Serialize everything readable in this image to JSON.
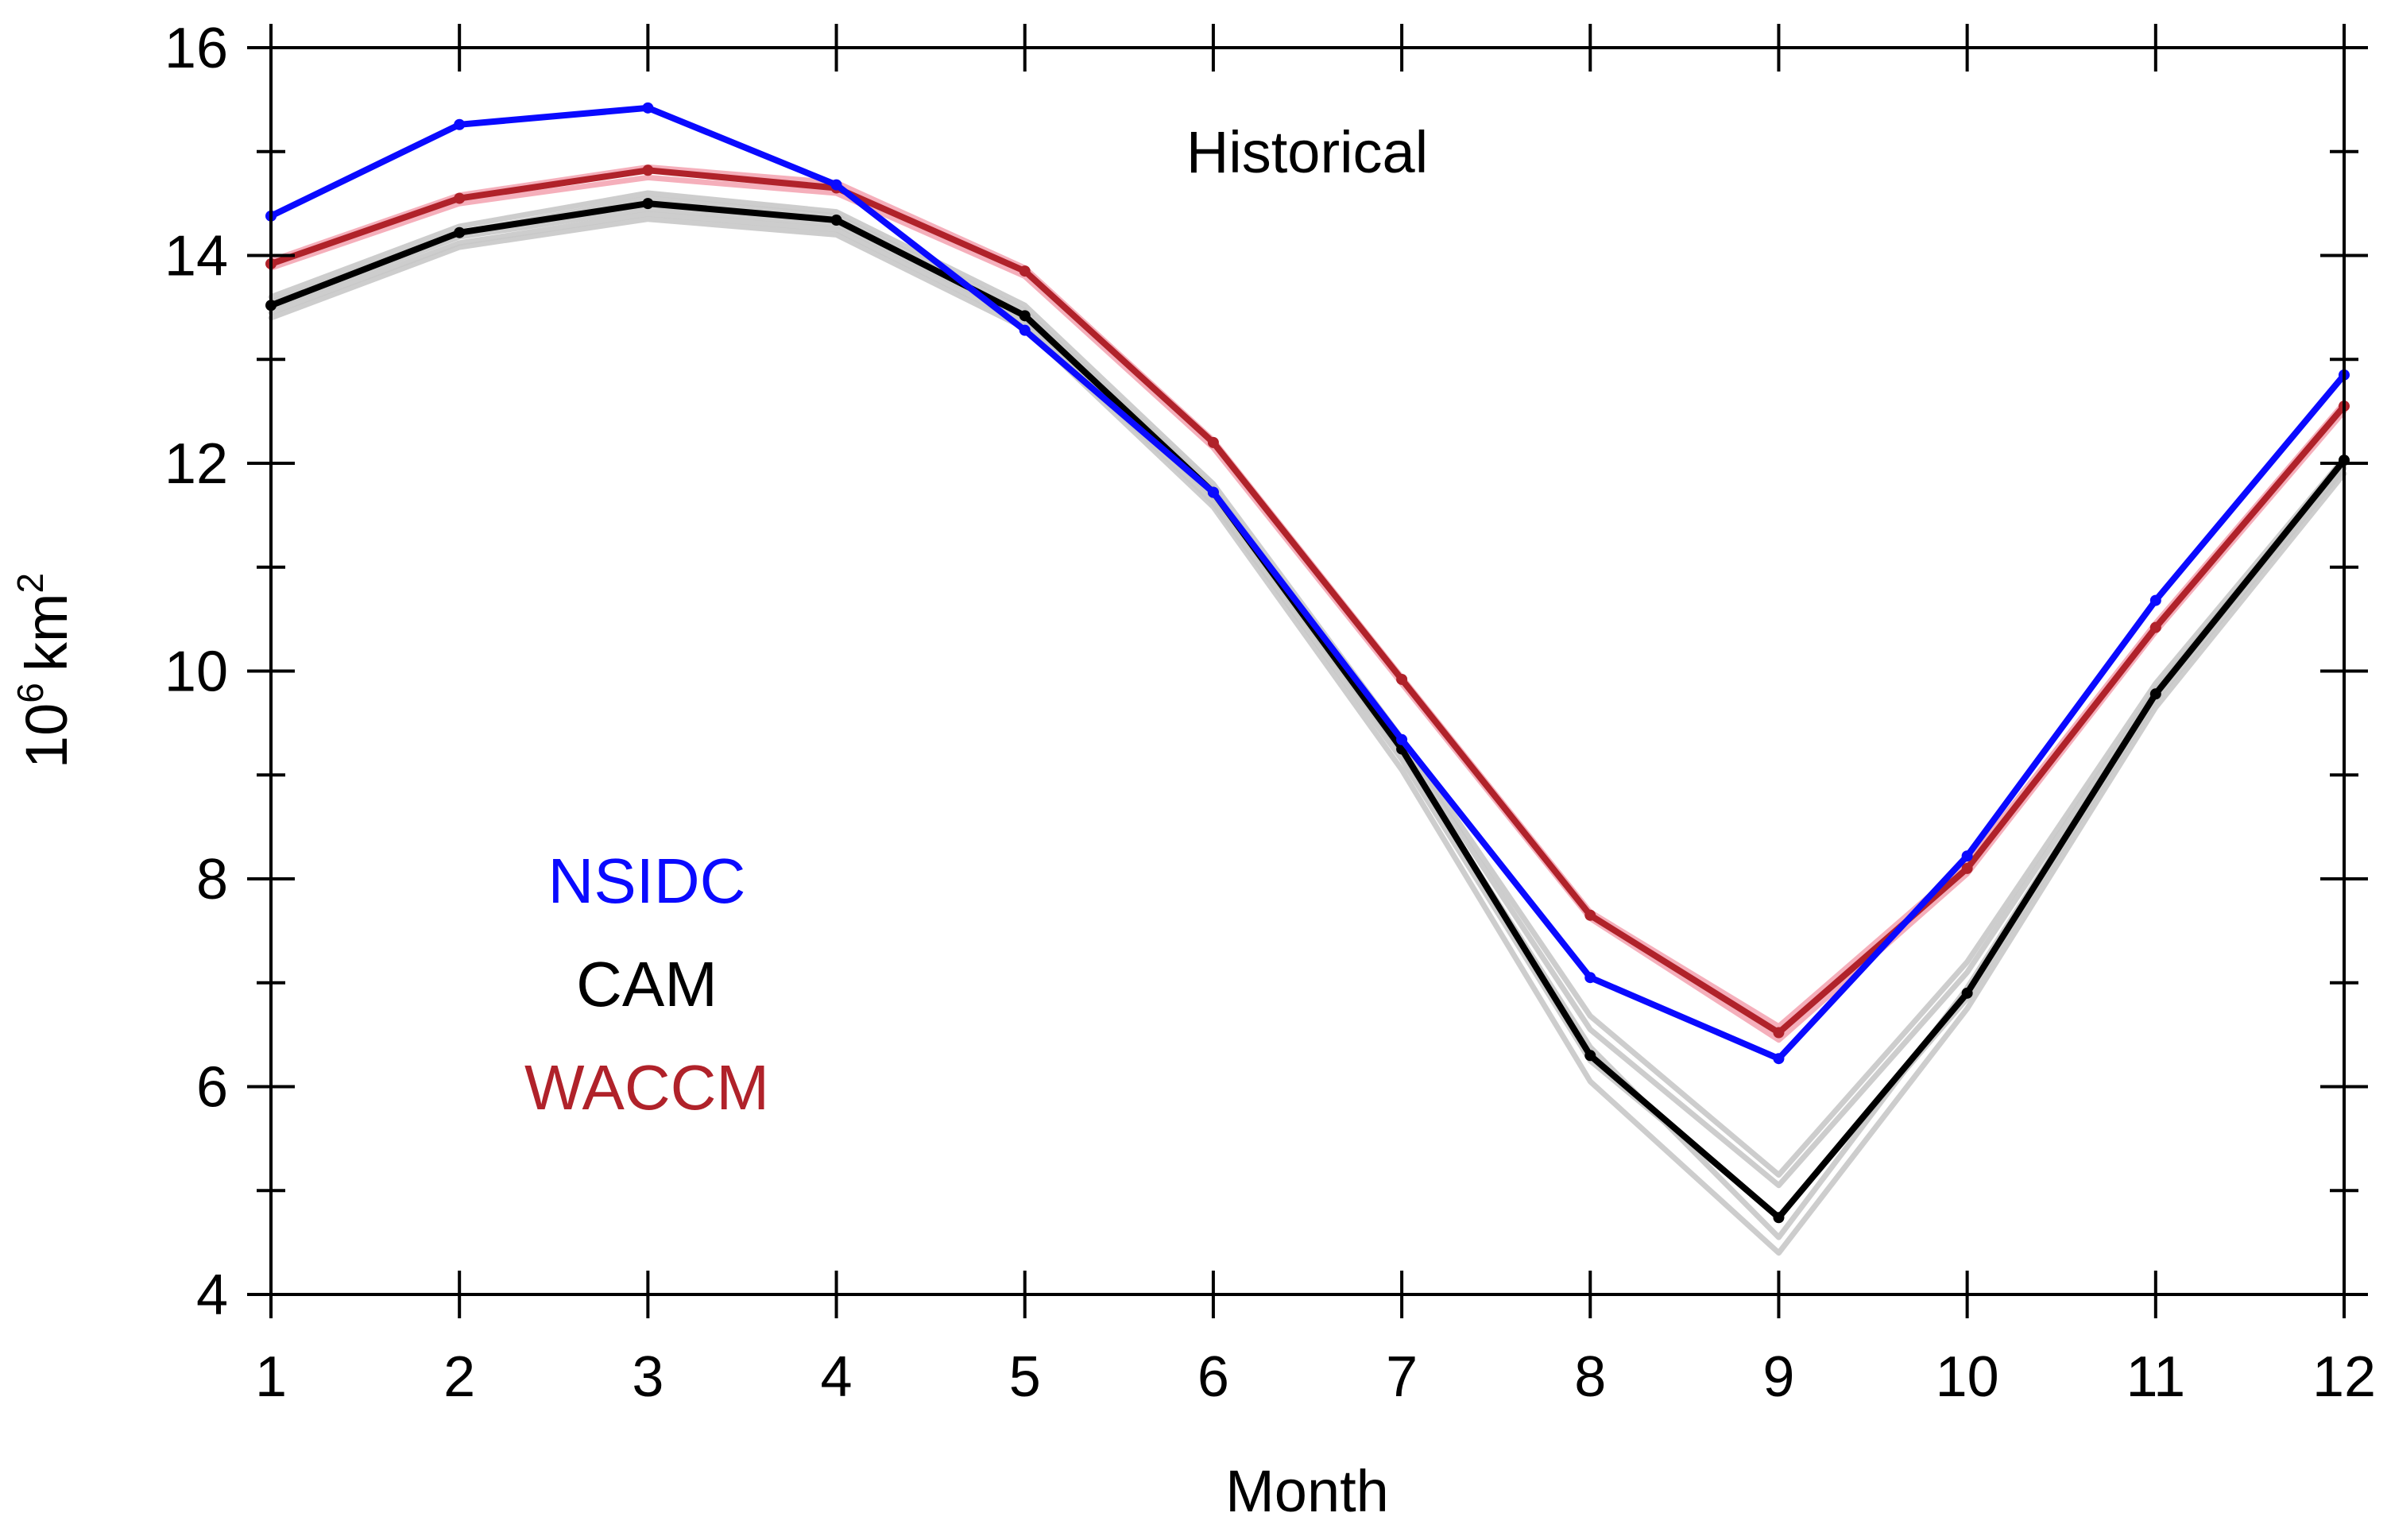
{
  "chart_data": {
    "type": "line",
    "title": "Historical",
    "xlabel": "Month",
    "ylabel": {
      "base": "10",
      "exp": "6",
      "unit": "km",
      "unit_exp": "2"
    },
    "xlim": [
      1,
      12
    ],
    "ylim": [
      4,
      16
    ],
    "x_ticks": [
      1,
      2,
      3,
      4,
      5,
      6,
      7,
      8,
      9,
      10,
      11,
      12
    ],
    "y_ticks": [
      4,
      6,
      8,
      10,
      12,
      14,
      16
    ],
    "y_minor_step": 1,
    "grid": false,
    "legend_position": "left-center",
    "x": [
      1,
      2,
      3,
      4,
      5,
      6,
      7,
      8,
      9,
      10,
      11,
      12
    ],
    "series": [
      {
        "name": "CAM-members",
        "color": "#c8c8c8",
        "role": "ensemble",
        "members": [
          [
            13.45,
            14.12,
            14.4,
            14.25,
            13.35,
            11.62,
            9.15,
            6.25,
            4.75,
            6.85,
            9.72,
            11.95
          ],
          [
            13.5,
            14.18,
            14.45,
            14.3,
            13.4,
            11.68,
            9.22,
            6.38,
            4.55,
            6.95,
            9.78,
            11.98
          ],
          [
            13.55,
            14.22,
            14.55,
            14.38,
            13.47,
            11.75,
            9.3,
            6.55,
            5.05,
            7.1,
            9.82,
            12.02
          ],
          [
            13.6,
            14.28,
            14.6,
            14.42,
            13.52,
            11.8,
            9.35,
            6.68,
            5.15,
            7.2,
            9.88,
            12.05
          ],
          [
            13.4,
            14.08,
            14.35,
            14.2,
            13.3,
            11.58,
            9.05,
            6.05,
            4.4,
            6.75,
            9.65,
            11.9
          ]
        ]
      },
      {
        "name": "WACCM-members",
        "color": "#f4a6b4",
        "role": "ensemble",
        "members": [
          [
            13.88,
            14.5,
            14.75,
            14.6,
            13.8,
            12.15,
            9.88,
            7.62,
            6.45,
            8.05,
            10.38,
            12.5
          ],
          [
            13.95,
            14.58,
            14.85,
            14.7,
            13.88,
            12.22,
            9.94,
            7.68,
            6.58,
            8.15,
            10.46,
            12.58
          ]
        ]
      },
      {
        "name": "NSIDC",
        "color": "#0a0aff",
        "values": [
          14.38,
          15.26,
          15.42,
          14.68,
          13.28,
          11.72,
          9.34,
          7.05,
          6.27,
          8.22,
          10.68,
          12.85
        ]
      },
      {
        "name": "WACCM",
        "color": "#b0222a",
        "values": [
          13.92,
          14.55,
          14.82,
          14.65,
          13.85,
          12.2,
          9.92,
          7.65,
          6.52,
          8.1,
          10.42,
          12.55
        ]
      },
      {
        "name": "CAM",
        "color": "#000000",
        "values": [
          13.52,
          14.22,
          14.5,
          14.34,
          13.42,
          11.72,
          9.25,
          6.3,
          4.74,
          6.9,
          9.78,
          12.03
        ]
      }
    ],
    "legend": [
      {
        "label": "NSIDC",
        "color": "#0a0aff"
      },
      {
        "label": "CAM",
        "color": "#000000"
      },
      {
        "label": "WACCM",
        "color": "#b0222a"
      }
    ]
  }
}
